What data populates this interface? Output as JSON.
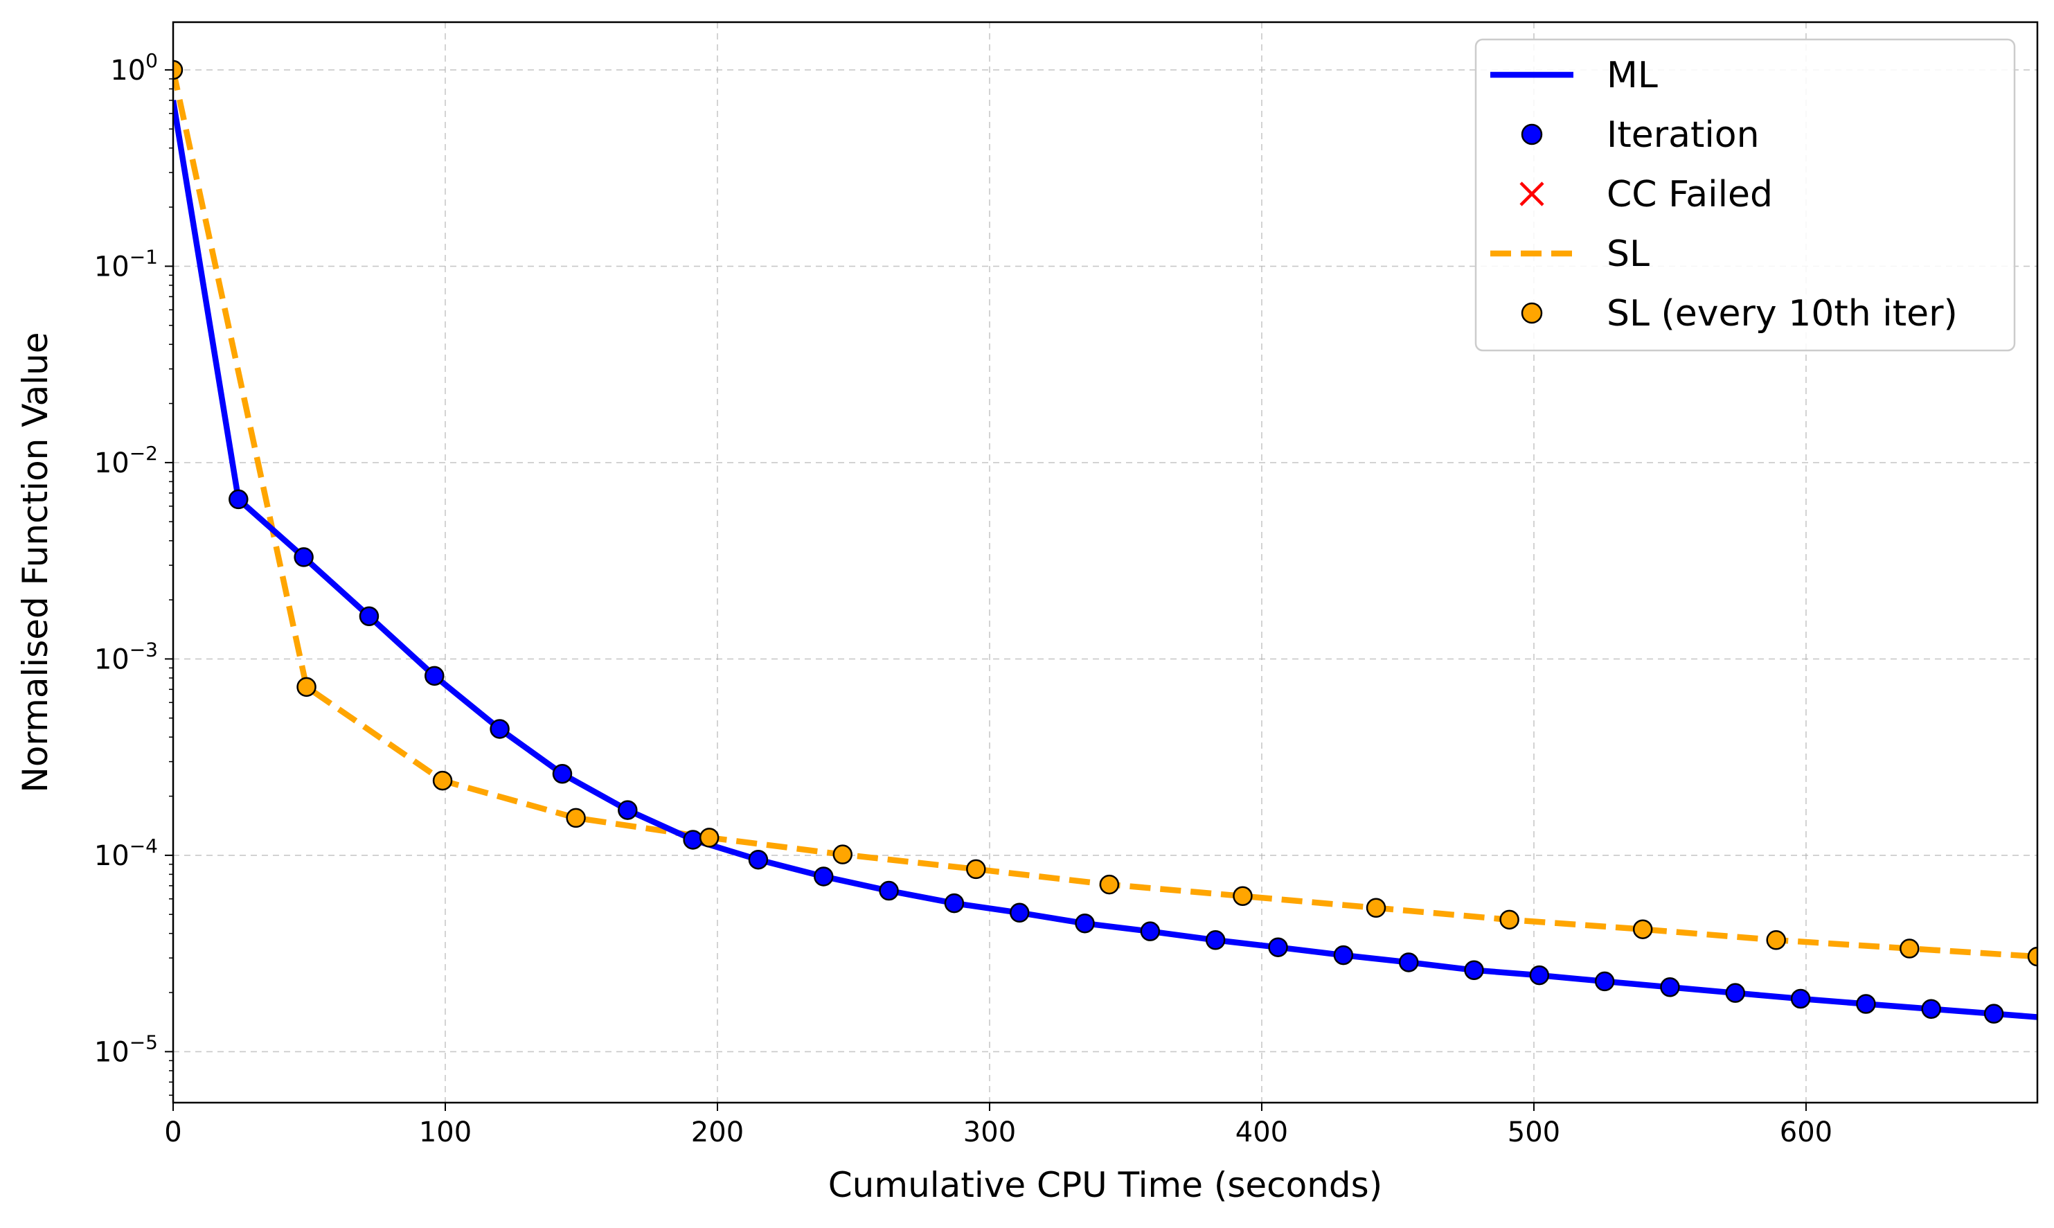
{
  "chart_data": {
    "type": "line",
    "title": "",
    "xlabel": "Cumulative CPU Time (seconds)",
    "ylabel": "Normalised Function Value",
    "xlim": [
      0,
      685
    ],
    "ylim": [
      5.5e-06,
      1.75
    ],
    "yscale": "log",
    "grid": true,
    "legend_position": "top-right",
    "x_ticks": [
      0,
      100,
      200,
      300,
      400,
      500,
      600
    ],
    "x_tick_labels": [
      "0",
      "100",
      "200",
      "300",
      "400",
      "500",
      "600"
    ],
    "y_ticks": [
      1e-05,
      0.0001,
      0.001,
      0.01,
      0.1,
      1
    ],
    "y_tick_labels": [
      {
        "base": "10",
        "exp": "−5"
      },
      {
        "base": "10",
        "exp": "−4"
      },
      {
        "base": "10",
        "exp": "−3"
      },
      {
        "base": "10",
        "exp": "−2"
      },
      {
        "base": "10",
        "exp": "−1"
      },
      {
        "base": "10",
        "exp": "0"
      }
    ],
    "legend": [
      {
        "label": "ML",
        "kind": "line",
        "color": "#0000ff"
      },
      {
        "label": "Iteration",
        "kind": "marker",
        "color": "#0000ff"
      },
      {
        "label": "CC Failed",
        "kind": "x-marker",
        "color": "#ff0000"
      },
      {
        "label": "SL",
        "kind": "dashed-line",
        "color": "#ffa500"
      },
      {
        "label": "SL (every 10th iter)",
        "kind": "marker",
        "color": "#ffa500"
      }
    ],
    "series": [
      {
        "name": "ML",
        "color": "#0000ff",
        "style": "solid",
        "x": [
          0,
          24,
          48,
          72,
          96,
          120,
          143,
          167,
          191,
          215,
          239,
          263,
          287,
          311,
          335,
          359,
          383,
          406,
          430,
          454,
          478,
          502,
          526,
          550,
          574,
          598,
          622,
          646,
          669,
          685
        ],
        "y": [
          0.7,
          0.0065,
          0.0033,
          0.00165,
          0.00082,
          0.00044,
          0.00026,
          0.00017,
          0.00012,
          9.5e-05,
          7.8e-05,
          6.6e-05,
          5.7e-05,
          5.1e-05,
          4.5e-05,
          4.1e-05,
          3.7e-05,
          3.4e-05,
          3.1e-05,
          2.85e-05,
          2.6e-05,
          2.45e-05,
          2.28e-05,
          2.13e-05,
          1.99e-05,
          1.86e-05,
          1.75e-05,
          1.65e-05,
          1.56e-05,
          1.5e-05
        ]
      },
      {
        "name": "Iteration",
        "color": "#0000ff",
        "style": "markers",
        "x": [
          24,
          48,
          72,
          96,
          120,
          143,
          167,
          191,
          215,
          239,
          263,
          287,
          311,
          335,
          359,
          383,
          406,
          430,
          454,
          478,
          502,
          526,
          550,
          574,
          598,
          622,
          646,
          669
        ],
        "y": [
          0.0065,
          0.0033,
          0.00165,
          0.00082,
          0.00044,
          0.00026,
          0.00017,
          0.00012,
          9.5e-05,
          7.8e-05,
          6.6e-05,
          5.7e-05,
          5.1e-05,
          4.5e-05,
          4.1e-05,
          3.7e-05,
          3.4e-05,
          3.1e-05,
          2.85e-05,
          2.6e-05,
          2.45e-05,
          2.28e-05,
          2.13e-05,
          1.99e-05,
          1.86e-05,
          1.75e-05,
          1.65e-05,
          1.56e-05
        ]
      },
      {
        "name": "CC Failed",
        "color": "#ff0000",
        "style": "x-markers",
        "x": [],
        "y": []
      },
      {
        "name": "SL",
        "color": "#ffa500",
        "style": "dashed",
        "x": [
          0,
          49,
          99,
          148,
          197,
          246,
          295,
          344,
          393,
          442,
          491,
          540,
          589,
          638,
          685
        ],
        "y": [
          1.0,
          0.00072,
          0.00024,
          0.000155,
          0.000123,
          0.000101,
          8.5e-05,
          7.1e-05,
          6.2e-05,
          5.4e-05,
          4.7e-05,
          4.2e-05,
          3.7e-05,
          3.35e-05,
          3.05e-05
        ]
      },
      {
        "name": "SL (every 10th iter)",
        "color": "#ffa500",
        "style": "markers",
        "x": [
          0,
          49,
          99,
          148,
          197,
          246,
          295,
          344,
          393,
          442,
          491,
          540,
          589,
          638,
          685
        ],
        "y": [
          1.0,
          0.00072,
          0.00024,
          0.000155,
          0.000123,
          0.000101,
          8.5e-05,
          7.1e-05,
          6.2e-05,
          5.4e-05,
          4.7e-05,
          4.2e-05,
          3.7e-05,
          3.35e-05,
          3.05e-05
        ]
      }
    ]
  }
}
